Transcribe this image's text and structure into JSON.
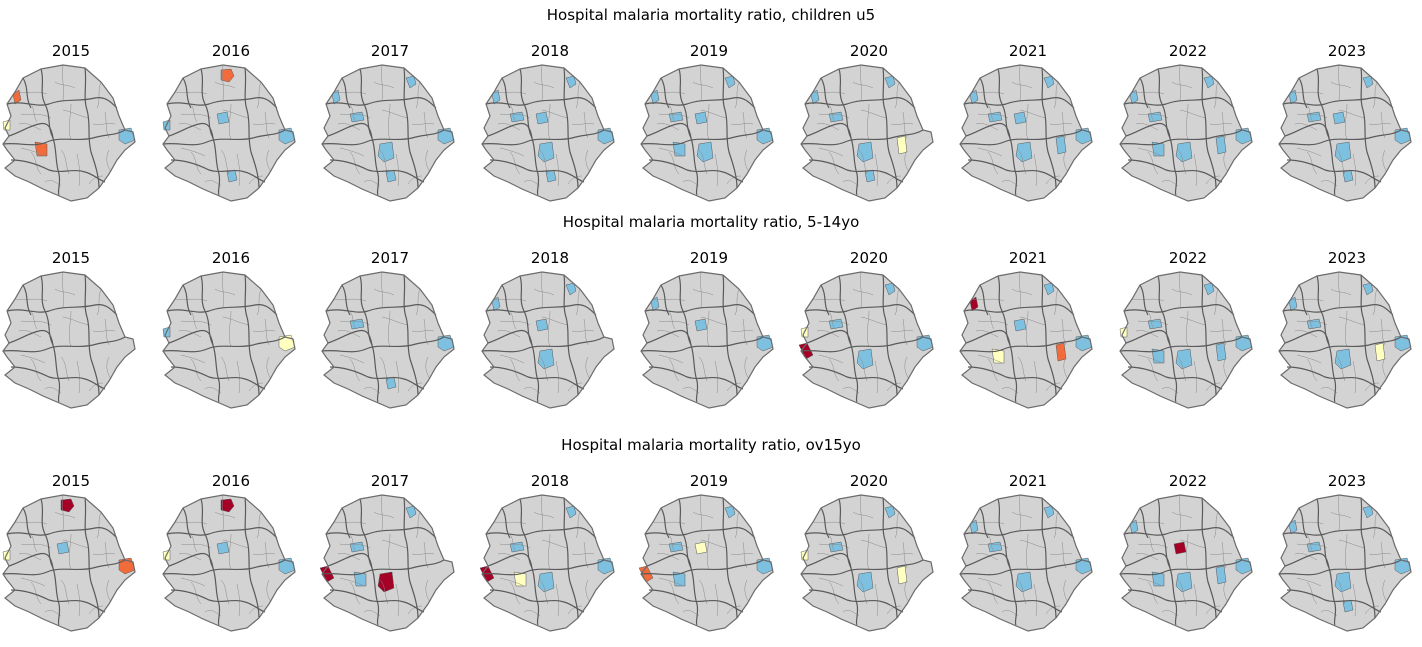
{
  "colors": {
    "base": "#d3d3d3",
    "boundary": "#6b6b6b",
    "low": "#7ec0e0",
    "mid": "#ffffbf",
    "high": "#f26b3a",
    "very_high": "#a50026"
  },
  "rows": [
    {
      "title": "Hospital malaria mortality ratio, children u5",
      "panels": [
        {
          "year": "2015",
          "regions": [
            {
              "id": "w1",
              "c": "high"
            },
            {
              "id": "w2",
              "c": "mid"
            },
            {
              "id": "s1",
              "c": "high"
            },
            {
              "id": "e1",
              "c": "low"
            }
          ]
        },
        {
          "year": "2016",
          "regions": [
            {
              "id": "n1",
              "c": "high"
            },
            {
              "id": "w2",
              "c": "low"
            },
            {
              "id": "c2",
              "c": "low"
            },
            {
              "id": "e1",
              "c": "low"
            },
            {
              "id": "s3",
              "c": "low"
            }
          ]
        },
        {
          "year": "2017",
          "regions": [
            {
              "id": "n2",
              "c": "low"
            },
            {
              "id": "w1",
              "c": "low"
            },
            {
              "id": "c1",
              "c": "low"
            },
            {
              "id": "s2",
              "c": "low"
            },
            {
              "id": "e1",
              "c": "low"
            },
            {
              "id": "s3",
              "c": "low"
            }
          ]
        },
        {
          "year": "2018",
          "regions": [
            {
              "id": "n2",
              "c": "low"
            },
            {
              "id": "w1",
              "c": "low"
            },
            {
              "id": "c1",
              "c": "low"
            },
            {
              "id": "c2",
              "c": "low"
            },
            {
              "id": "s2",
              "c": "low"
            },
            {
              "id": "e1",
              "c": "low"
            },
            {
              "id": "s3",
              "c": "low"
            }
          ]
        },
        {
          "year": "2019",
          "regions": [
            {
              "id": "n2",
              "c": "low"
            },
            {
              "id": "w1",
              "c": "low"
            },
            {
              "id": "c1",
              "c": "low"
            },
            {
              "id": "c2",
              "c": "low"
            },
            {
              "id": "s1",
              "c": "low"
            },
            {
              "id": "s2",
              "c": "low"
            },
            {
              "id": "e1",
              "c": "low"
            }
          ]
        },
        {
          "year": "2020",
          "regions": [
            {
              "id": "n2",
              "c": "low"
            },
            {
              "id": "w1",
              "c": "low"
            },
            {
              "id": "c1",
              "c": "low"
            },
            {
              "id": "s2",
              "c": "low"
            },
            {
              "id": "e2",
              "c": "mid"
            },
            {
              "id": "s3",
              "c": "low"
            }
          ]
        },
        {
          "year": "2021",
          "regions": [
            {
              "id": "n2",
              "c": "low"
            },
            {
              "id": "w1",
              "c": "low"
            },
            {
              "id": "c1",
              "c": "low"
            },
            {
              "id": "c2",
              "c": "low"
            },
            {
              "id": "s2",
              "c": "low"
            },
            {
              "id": "e1",
              "c": "low"
            },
            {
              "id": "e2",
              "c": "low"
            }
          ]
        },
        {
          "year": "2022",
          "regions": [
            {
              "id": "n2",
              "c": "low"
            },
            {
              "id": "w1",
              "c": "low"
            },
            {
              "id": "c1",
              "c": "low"
            },
            {
              "id": "s1",
              "c": "low"
            },
            {
              "id": "s2",
              "c": "low"
            },
            {
              "id": "e1",
              "c": "low"
            },
            {
              "id": "e2",
              "c": "low"
            }
          ]
        },
        {
          "year": "2023",
          "regions": [
            {
              "id": "n2",
              "c": "low"
            },
            {
              "id": "w1",
              "c": "low"
            },
            {
              "id": "c1",
              "c": "low"
            },
            {
              "id": "c2",
              "c": "low"
            },
            {
              "id": "s2",
              "c": "low"
            },
            {
              "id": "e1",
              "c": "low"
            },
            {
              "id": "s3",
              "c": "low"
            }
          ]
        }
      ]
    },
    {
      "title": "Hospital malaria mortality ratio, 5-14yo",
      "panels": [
        {
          "year": "2015",
          "regions": []
        },
        {
          "year": "2016",
          "regions": [
            {
              "id": "w2",
              "c": "low"
            },
            {
              "id": "e1",
              "c": "mid"
            }
          ]
        },
        {
          "year": "2017",
          "regions": [
            {
              "id": "c1",
              "c": "low"
            },
            {
              "id": "e1",
              "c": "low"
            },
            {
              "id": "s3",
              "c": "low"
            }
          ]
        },
        {
          "year": "2018",
          "regions": [
            {
              "id": "n2",
              "c": "low"
            },
            {
              "id": "w1",
              "c": "low"
            },
            {
              "id": "c2",
              "c": "low"
            },
            {
              "id": "s2",
              "c": "low"
            }
          ]
        },
        {
          "year": "2019",
          "regions": [
            {
              "id": "w1",
              "c": "low"
            },
            {
              "id": "c2",
              "c": "low"
            },
            {
              "id": "e1",
              "c": "low"
            }
          ]
        },
        {
          "year": "2020",
          "regions": [
            {
              "id": "w2",
              "c": "mid"
            },
            {
              "id": "w3",
              "c": "very_high"
            },
            {
              "id": "n2",
              "c": "low"
            },
            {
              "id": "c1",
              "c": "low"
            },
            {
              "id": "s2",
              "c": "low"
            },
            {
              "id": "e1",
              "c": "low"
            }
          ]
        },
        {
          "year": "2021",
          "regions": [
            {
              "id": "w1",
              "c": "very_high"
            },
            {
              "id": "n2",
              "c": "low"
            },
            {
              "id": "s1",
              "c": "mid"
            },
            {
              "id": "e2",
              "c": "high"
            },
            {
              "id": "e1",
              "c": "low"
            },
            {
              "id": "c2",
              "c": "low"
            }
          ]
        },
        {
          "year": "2022",
          "regions": [
            {
              "id": "w2",
              "c": "mid"
            },
            {
              "id": "n2",
              "c": "low"
            },
            {
              "id": "c1",
              "c": "low"
            },
            {
              "id": "s1",
              "c": "low"
            },
            {
              "id": "s2",
              "c": "low"
            },
            {
              "id": "e2",
              "c": "low"
            },
            {
              "id": "e1",
              "c": "low"
            }
          ]
        },
        {
          "year": "2023",
          "regions": [
            {
              "id": "n2",
              "c": "low"
            },
            {
              "id": "w1",
              "c": "low"
            },
            {
              "id": "c1",
              "c": "low"
            },
            {
              "id": "s2",
              "c": "low"
            },
            {
              "id": "e2",
              "c": "mid"
            },
            {
              "id": "e1",
              "c": "low"
            }
          ]
        }
      ]
    },
    {
      "title": "Hospital malaria mortality ratio, ov15yo",
      "panels": [
        {
          "year": "2015",
          "regions": [
            {
              "id": "n1",
              "c": "very_high"
            },
            {
              "id": "w2",
              "c": "mid"
            },
            {
              "id": "e1",
              "c": "high"
            },
            {
              "id": "c2",
              "c": "low"
            }
          ]
        },
        {
          "year": "2016",
          "regions": [
            {
              "id": "n1",
              "c": "very_high"
            },
            {
              "id": "w2",
              "c": "mid"
            },
            {
              "id": "c2",
              "c": "low"
            },
            {
              "id": "e1",
              "c": "low"
            }
          ]
        },
        {
          "year": "2017",
          "regions": [
            {
              "id": "w3",
              "c": "very_high"
            },
            {
              "id": "s2",
              "c": "very_high"
            },
            {
              "id": "n2",
              "c": "low"
            },
            {
              "id": "c1",
              "c": "low"
            },
            {
              "id": "s1",
              "c": "low"
            }
          ]
        },
        {
          "year": "2018",
          "regions": [
            {
              "id": "w3",
              "c": "very_high"
            },
            {
              "id": "s1",
              "c": "mid"
            },
            {
              "id": "n2",
              "c": "low"
            },
            {
              "id": "c1",
              "c": "low"
            },
            {
              "id": "s2",
              "c": "low"
            },
            {
              "id": "e1",
              "c": "low"
            }
          ]
        },
        {
          "year": "2019",
          "regions": [
            {
              "id": "w3",
              "c": "high"
            },
            {
              "id": "n2",
              "c": "low"
            },
            {
              "id": "c1",
              "c": "low"
            },
            {
              "id": "s1",
              "c": "low"
            },
            {
              "id": "c2",
              "c": "mid"
            },
            {
              "id": "e1",
              "c": "low"
            }
          ]
        },
        {
          "year": "2020",
          "regions": [
            {
              "id": "n2",
              "c": "low"
            },
            {
              "id": "w2",
              "c": "mid"
            },
            {
              "id": "s2",
              "c": "low"
            },
            {
              "id": "e2",
              "c": "mid"
            },
            {
              "id": "c1",
              "c": "low"
            }
          ]
        },
        {
          "year": "2021",
          "regions": [
            {
              "id": "n2",
              "c": "low"
            },
            {
              "id": "w1",
              "c": "low"
            },
            {
              "id": "c1",
              "c": "low"
            },
            {
              "id": "s2",
              "c": "low"
            },
            {
              "id": "e1",
              "c": "low"
            }
          ]
        },
        {
          "year": "2022",
          "regions": [
            {
              "id": "c2",
              "c": "very_high"
            },
            {
              "id": "w1",
              "c": "low"
            },
            {
              "id": "s1",
              "c": "low"
            },
            {
              "id": "s2",
              "c": "low"
            },
            {
              "id": "e2",
              "c": "low"
            },
            {
              "id": "e1",
              "c": "low"
            }
          ]
        },
        {
          "year": "2023",
          "regions": [
            {
              "id": "n2",
              "c": "low"
            },
            {
              "id": "w1",
              "c": "low"
            },
            {
              "id": "c1",
              "c": "low"
            },
            {
              "id": "s2",
              "c": "low"
            },
            {
              "id": "e1",
              "c": "low"
            },
            {
              "id": "s3",
              "c": "low"
            }
          ]
        }
      ]
    }
  ]
}
